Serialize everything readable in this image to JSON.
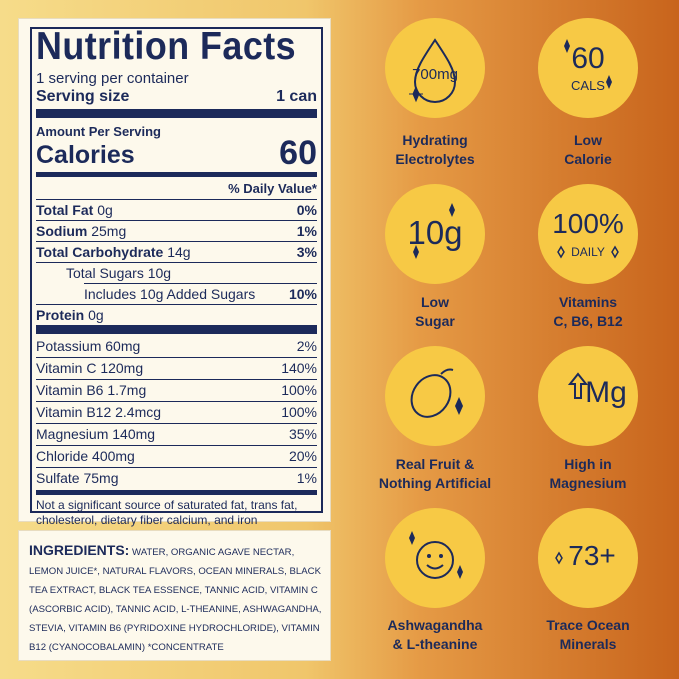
{
  "nutrition": {
    "title": "Nutrition Facts",
    "servings_per_container": "1 serving per container",
    "serving_size_label": "Serving size",
    "serving_size_value": "1 can",
    "amount_per_serving": "Amount Per Serving",
    "calories_label": "Calories",
    "calories_value": "60",
    "daily_value_header": "% Daily Value*",
    "total_fat_label": "Total Fat",
    "total_fat_amount": "0g",
    "total_fat_dv": "0%",
    "sodium_label": "Sodium",
    "sodium_amount": "25mg",
    "sodium_dv": "1%",
    "carb_label": "Total Carbohydrate",
    "carb_amount": "14g",
    "carb_dv": "3%",
    "sugars_text": "Total Sugars 10g",
    "added_sugars_text": "Includes 10g Added Sugars",
    "added_sugars_dv": "10%",
    "protein_label": "Protein",
    "protein_amount": "0g",
    "micros": [
      {
        "name": "Potassium 60mg",
        "dv": "2%"
      },
      {
        "name": "Vitamin C 120mg",
        "dv": "140%"
      },
      {
        "name": "Vitamin B6 1.7mg",
        "dv": "100%"
      },
      {
        "name": "Vitamin B12 2.4mcg",
        "dv": "100%"
      },
      {
        "name": "Magnesium 140mg",
        "dv": "35%"
      },
      {
        "name": "Chloride 400mg",
        "dv": "20%"
      },
      {
        "name": "Sulfate 75mg",
        "dv": "1%"
      }
    ],
    "footnote_line1": "Not a significant source of saturated fat, trans fat,",
    "footnote_line2": "cholesterol, dietary fiber calcium, and iron"
  },
  "ingredients": {
    "label": "INGREDIENTS:",
    "text": "WATER, ORGANIC AGAVE NECTAR, LEMON JUICE*, NATURAL FLAVORS, OCEAN MINERALS, BLACK TEA EXTRACT, BLACK TEA ESSENCE, TANNIC ACID, VITAMIN C (ASCORBIC ACID), TANNIC ACID, L-THEANINE, ASHWAGANDHA, STEVIA, VITAMIN B6 (PYRIDOXINE HYDROCHLORIDE), VITAMIN B12 (CYANOCOBALAMIN) *CONCENTRATE"
  },
  "badges": [
    {
      "icon": "drop-icon",
      "text": "700mg",
      "line1": "Hydrating",
      "line2": "Electrolytes"
    },
    {
      "icon": "calories-icon",
      "text": "60",
      "subtext": "CALS",
      "line1": "Low",
      "line2": "Calorie"
    },
    {
      "icon": "sugar-icon",
      "text": "10g",
      "line1": "Low",
      "line2": "Sugar"
    },
    {
      "icon": "daily-value-icon",
      "text": "100%",
      "subtext": "DAILY",
      "line1": "Vitamins",
      "line2": "C, B6, B12"
    },
    {
      "icon": "lemon-icon",
      "line1": "Real Fruit &",
      "line2": "Nothing Artificial"
    },
    {
      "icon": "magnesium-icon",
      "text": "Mg",
      "line1": "High in",
      "line2": "Magnesium"
    },
    {
      "icon": "smiley-icon",
      "line1": "Ashwagandha",
      "line2": "& L-theanine"
    },
    {
      "icon": "minerals-icon",
      "text": "73+",
      "line1": "Trace Ocean",
      "line2": "Minerals"
    }
  ],
  "colors": {
    "ink": "#1c2a5a",
    "badge": "#f7c945",
    "panel": "#fdf9ec"
  }
}
